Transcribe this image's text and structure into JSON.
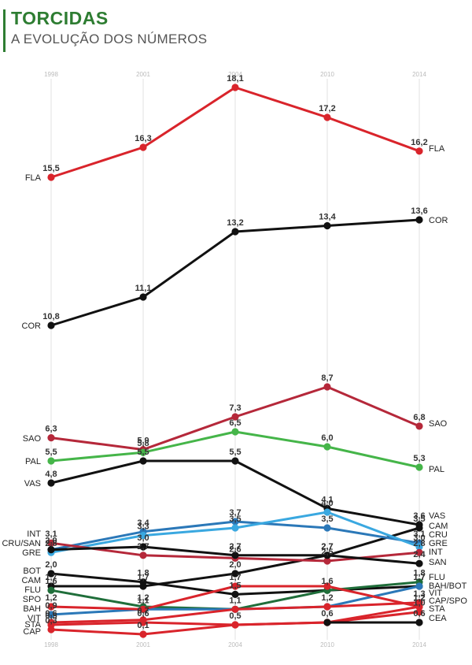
{
  "header": {
    "title": "TORCIDAS",
    "subtitle": "A EVOLUÇÃO DOS NÚMEROS"
  },
  "chart_data": {
    "type": "line",
    "title": "TORCIDAS",
    "subtitle": "A EVOLUÇÃO DOS NÚMEROS",
    "x": [
      "1998",
      "2001",
      "2004",
      "2010",
      "2014"
    ],
    "grid": true,
    "legend": "labels at line ends",
    "series": [
      {
        "name": "FLA",
        "color": "#d9242b",
        "values": [
          15.5,
          16.3,
          18.1,
          17.2,
          16.2
        ],
        "labels": [
          "15,5",
          "16,3",
          "18,1",
          "17,2",
          "16,2"
        ]
      },
      {
        "name": "COR",
        "color": "#111111",
        "values": [
          10.8,
          11.1,
          13.2,
          13.4,
          13.6
        ],
        "labels": [
          "10,8",
          "11,1",
          "13,2",
          "13,4",
          "13,6"
        ]
      },
      {
        "name": "SAO",
        "color": "#b5283a",
        "values": [
          6.3,
          5.9,
          7.3,
          8.7,
          6.8
        ],
        "labels": [
          "6,3",
          "5,9",
          "7,3",
          "8,7",
          "6,8"
        ]
      },
      {
        "name": "PAL",
        "color": "#45b549",
        "values": [
          5.5,
          5.8,
          6.5,
          6.0,
          5.3
        ],
        "labels": [
          "5,5",
          "5,8",
          "6,5",
          "6,0",
          "5,3"
        ]
      },
      {
        "name": "VAS",
        "color": "#111111",
        "values": [
          4.8,
          5.5,
          5.5,
          4.1,
          3.6
        ],
        "labels": [
          "4,8",
          "5,5",
          "5,5",
          "4,1",
          "3,6"
        ]
      },
      {
        "name": "CAM",
        "color": "#111111",
        "values": [
          1.7,
          1.7,
          2.0,
          2.7,
          3.5
        ],
        "labels": [
          "1,7",
          "1,7",
          "2,0",
          "2,7",
          "3,5"
        ]
      },
      {
        "name": "CRU",
        "color": "#2b78b8",
        "values": [
          2.9,
          3.4,
          3.7,
          3.5,
          3.1
        ],
        "labels": [
          "2,9",
          "3,4",
          "3,7",
          "3,5",
          "3,1"
        ]
      },
      {
        "name": "GRE",
        "color": "#3aa8e0",
        "values": [
          2.8,
          3.3,
          3.5,
          4.0,
          3.0
        ],
        "labels": [
          "2,8",
          "3,3",
          "3,5",
          "4,0",
          "3,0"
        ]
      },
      {
        "name": "INT",
        "color": "#b5283a",
        "values": [
          3.1,
          2.7,
          2.6,
          2.5,
          2.8
        ],
        "labels": [
          "3,1",
          "2,7",
          "2,6",
          "2,5",
          "2,8"
        ]
      },
      {
        "name": "SAN",
        "color": "#111111",
        "values": [
          2.9,
          3.0,
          2.7,
          2.7,
          2.4
        ],
        "labels": [
          "",
          "3,0",
          "2,7",
          "2,7",
          "2,4"
        ]
      },
      {
        "name": "BOT",
        "color": "#111111",
        "values": [
          2.0,
          1.8,
          1.5,
          1.6,
          1.7
        ],
        "labels": [
          "2,0",
          "1,8",
          "1,5",
          "1,6",
          "1,7"
        ]
      },
      {
        "name": "FLU",
        "color": "#1f6e3a",
        "values": [
          1.6,
          1.2,
          1.1,
          1.6,
          1.8
        ],
        "labels": [
          "1,6",
          "1,2",
          "",
          "",
          "1,8"
        ]
      },
      {
        "name": "BAH",
        "color": "#2b78b8",
        "values": [
          0.9,
          1.1,
          1.1,
          1.2,
          1.7
        ],
        "labels": [
          "0,9",
          "1,1",
          "",
          "1,2",
          "1,7"
        ]
      },
      {
        "name": "SPO",
        "color": "#d9242b",
        "values": [
          1.2,
          1.1,
          1.7,
          1.7,
          1.2
        ],
        "labels": [
          "1,2",
          "",
          "1,7",
          "",
          "1,2"
        ]
      },
      {
        "name": "VIT",
        "color": "#d9242b",
        "values": [
          0.6,
          0.7,
          1.1,
          1.2,
          1.3
        ],
        "labels": [
          "0,6",
          "0,7",
          "1,1",
          "",
          "1,3"
        ]
      },
      {
        "name": "STA",
        "color": "#d9242b",
        "values": [
          0.5,
          0.6,
          0.5,
          0.6,
          1.0
        ],
        "labels": [
          "0,5",
          "0,6",
          "",
          "",
          "1,0"
        ]
      },
      {
        "name": "CAP",
        "color": "#d9242b",
        "values": [
          0.3,
          0.1,
          0.5,
          0.6,
          1.2
        ],
        "labels": [
          "0,3",
          "0,1",
          "0,5",
          "0,6",
          "1,2"
        ]
      },
      {
        "name": "CEA",
        "color": "#111111",
        "values": [
          null,
          null,
          null,
          0.6,
          0.6
        ],
        "labels": [
          "",
          "",
          "",
          "",
          "0,6"
        ]
      }
    ],
    "start_labels": [
      "FLA",
      "COR",
      "SAO",
      "PAL",
      "VAS",
      "INT",
      "CRU/SAN",
      "GRE",
      "BOT",
      "CAM",
      "FLU",
      "SPO",
      "BAH",
      "VIT",
      "STA",
      "CAP"
    ],
    "end_labels": [
      "FLA",
      "COR",
      "SAO",
      "PAL",
      "VAS",
      "CAM",
      "CRU",
      "GRE",
      "INT",
      "SAN",
      "FLU",
      "BAH/BOT",
      "VIT",
      "CAP/SPO",
      "STA",
      "CEA"
    ]
  }
}
